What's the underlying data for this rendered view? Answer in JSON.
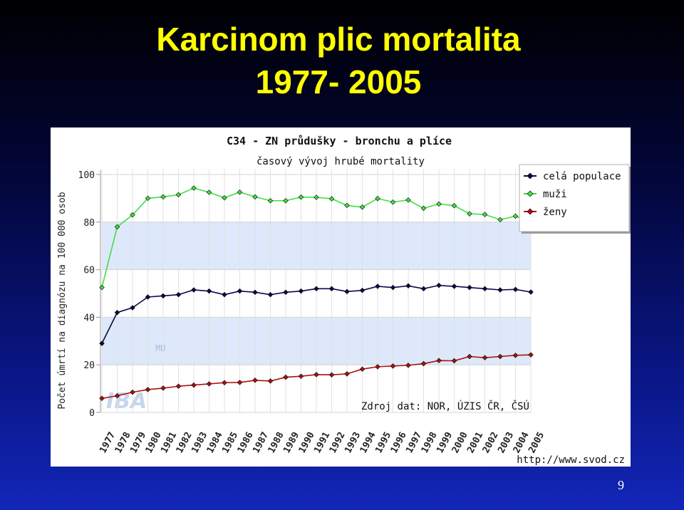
{
  "slide": {
    "title_line1": "Karcinom plic mortalita",
    "title_line2": "1977- 2005",
    "page_number": "9"
  },
  "chart_data": {
    "type": "line",
    "title": "C34 - ZN průdušky - bronchu a plíce",
    "subtitle": "časový vývoj hrubé mortality",
    "ylabel": "Počet úmrtí na diagnózu na 100 000 osob",
    "xlabel": "",
    "ylim": [
      0,
      100
    ],
    "yticks": [
      0,
      20,
      40,
      60,
      80,
      100
    ],
    "grid": true,
    "legend_position": "top-right",
    "categories": [
      "1977",
      "1978",
      "1979",
      "1980",
      "1981",
      "1982",
      "1983",
      "1984",
      "1985",
      "1986",
      "1987",
      "1988",
      "1989",
      "1990",
      "1991",
      "1992",
      "1993",
      "1994",
      "1995",
      "1996",
      "1997",
      "1998",
      "1999",
      "2000",
      "2001",
      "2002",
      "2003",
      "2004",
      "2005"
    ],
    "series": [
      {
        "name": "celá populace",
        "color": "#0a0a4a",
        "values": [
          29,
          42,
          44,
          48.5,
          49,
          49.5,
          51.5,
          51,
          49.5,
          51,
          50.5,
          49.5,
          50.5,
          51,
          52,
          52,
          50.8,
          51.3,
          53,
          52.5,
          53.2,
          52,
          53.4,
          53,
          52.5,
          52,
          51.5,
          51.7,
          50.6
        ]
      },
      {
        "name": "muži",
        "color": "#44dd44",
        "values": [
          52.5,
          78,
          83,
          90,
          90.6,
          91.5,
          94.3,
          92.5,
          90.2,
          92.6,
          90.6,
          89,
          89,
          90.5,
          90.4,
          89.8,
          87,
          86.3,
          89.9,
          88.4,
          89.3,
          85.8,
          87.6,
          86.9,
          83.5,
          83.2,
          81,
          82.5,
          80
        ]
      },
      {
        "name": "ženy",
        "color": "#aa1111",
        "values": [
          5.9,
          7,
          8.5,
          9.6,
          10.2,
          11,
          11.5,
          12,
          12.5,
          12.6,
          13.5,
          13.2,
          14.8,
          15.2,
          15.9,
          15.8,
          16.2,
          18.2,
          19.2,
          19.5,
          19.8,
          20.5,
          21.8,
          21.7,
          23.5,
          23,
          23.5,
          24,
          24.2
        ]
      }
    ],
    "source_note": "Zdroj dat: NOR, ÚZIS ČR, ČSÚ",
    "url": "http://www.svod.cz",
    "watermark": "MU IBA"
  }
}
